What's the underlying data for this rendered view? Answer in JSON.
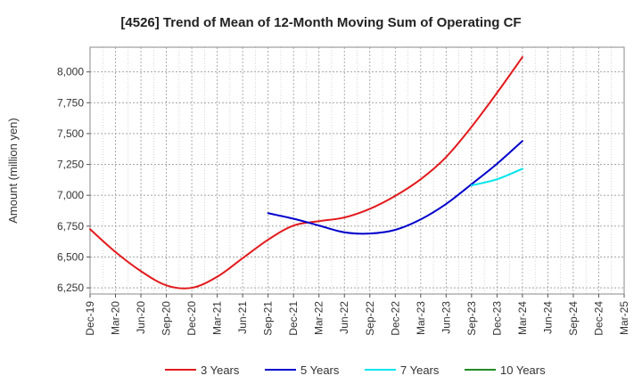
{
  "chart_data": {
    "type": "line",
    "title": "[4526]  Trend of Mean of 12-Month Moving Sum of Operating CF",
    "xlabel": "",
    "ylabel": "Amount (million yen)",
    "ylim": [
      6200,
      8200
    ],
    "yticks": [
      6250,
      6500,
      6750,
      7000,
      7250,
      7500,
      7750,
      8000
    ],
    "ytick_labels": [
      "6,250",
      "6,500",
      "6,750",
      "7,000",
      "7,250",
      "7,500",
      "7,750",
      "8,000"
    ],
    "x_categories": [
      "Dec-19",
      "Mar-20",
      "Jun-20",
      "Sep-20",
      "Dec-20",
      "Mar-21",
      "Jun-21",
      "Sep-21",
      "Dec-21",
      "Mar-22",
      "Jun-22",
      "Sep-22",
      "Dec-22",
      "Mar-23",
      "Jun-23",
      "Sep-23",
      "Dec-23",
      "Mar-24",
      "Jun-24",
      "Sep-24",
      "Dec-24",
      "Mar-25"
    ],
    "grid": true,
    "legend_position": "bottom",
    "series": [
      {
        "name": "3 Years",
        "color": "#e31a1c",
        "points": [
          [
            0,
            6725
          ],
          [
            1,
            6540
          ],
          [
            2,
            6385
          ],
          [
            3,
            6270
          ],
          [
            4,
            6250
          ],
          [
            5,
            6340
          ],
          [
            6,
            6490
          ],
          [
            7,
            6640
          ],
          [
            8,
            6755
          ],
          [
            9,
            6790
          ],
          [
            10,
            6820
          ],
          [
            11,
            6890
          ],
          [
            12,
            6995
          ],
          [
            13,
            7130
          ],
          [
            14,
            7310
          ],
          [
            15,
            7555
          ],
          [
            16,
            7830
          ],
          [
            17,
            8120
          ]
        ]
      },
      {
        "name": "5 Years",
        "color": "#0000cc",
        "points": [
          [
            7,
            6855
          ],
          [
            8,
            6810
          ],
          [
            9,
            6755
          ],
          [
            10,
            6700
          ],
          [
            11,
            6690
          ],
          [
            12,
            6720
          ],
          [
            13,
            6805
          ],
          [
            14,
            6930
          ],
          [
            15,
            7090
          ],
          [
            16,
            7255
          ],
          [
            17,
            7440
          ]
        ]
      },
      {
        "name": "7 Years",
        "color": "#00e5ee",
        "points": [
          [
            15,
            7080
          ],
          [
            16,
            7130
          ],
          [
            17,
            7215
          ]
        ]
      },
      {
        "name": "10 Years",
        "color": "#228b22",
        "points": []
      }
    ]
  }
}
